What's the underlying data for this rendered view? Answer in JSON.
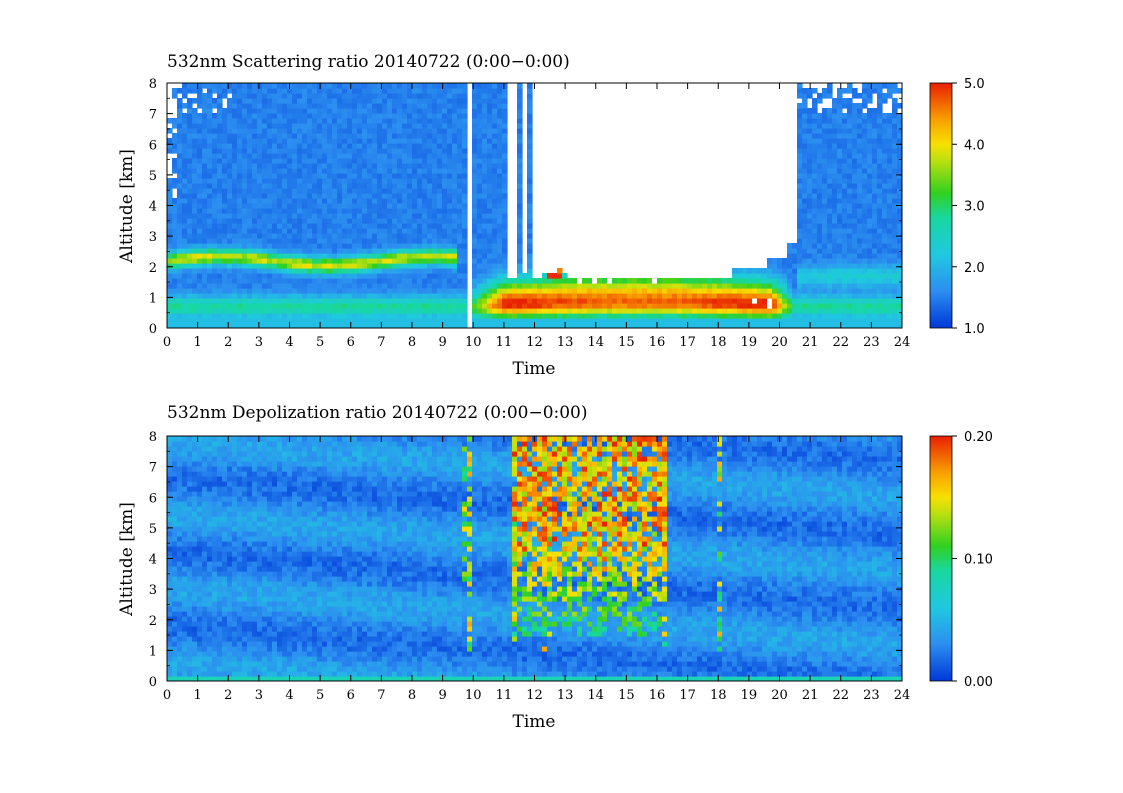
{
  "chart_data": [
    {
      "type": "heatmap",
      "title": "532nm Scattering ratio  20140722 (0:00−0:00)",
      "xlabel": "Time",
      "ylabel": "Altitude [km]",
      "xlim": [
        0,
        24
      ],
      "ylim": [
        0,
        8
      ],
      "x_ticks": [
        "0",
        "1",
        "2",
        "3",
        "4",
        "5",
        "6",
        "7",
        "8",
        "9",
        "10",
        "11",
        "12",
        "13",
        "14",
        "15",
        "16",
        "17",
        "18",
        "19",
        "20",
        "21",
        "22",
        "23",
        "24"
      ],
      "y_ticks": [
        "0",
        "1",
        "2",
        "3",
        "4",
        "5",
        "6",
        "7",
        "8"
      ],
      "colorbar": {
        "range": [
          1.0,
          5.0
        ],
        "ticks": [
          "1.0",
          "2.0",
          "3.0",
          "4.0",
          "5.0"
        ]
      },
      "features": {
        "aerosol_layer": {
          "altitude_km": 2.2,
          "time_range_h": [
            0,
            9.5
          ],
          "peak_value": 4.0
        },
        "boundary_layer": {
          "altitude_km": 0.7,
          "time_range_h": [
            0,
            24
          ],
          "value": 2.8
        },
        "cloud_base_region": {
          "altitude_km": [
            0.5,
            2.8
          ],
          "time_range_h": [
            9.8,
            20.5
          ],
          "peak_value": 5.0
        },
        "no_data_region": {
          "altitude_km": [
            1.6,
            8.0
          ],
          "time_range_h": [
            12.0,
            20.5
          ]
        },
        "background_value": 1.5
      }
    },
    {
      "type": "heatmap",
      "title": "532nm Depolization ratio  20140722 (0:00−0:00)",
      "xlabel": "Time",
      "ylabel": "Altitude [km]",
      "xlim": [
        0,
        24
      ],
      "ylim": [
        0,
        8
      ],
      "x_ticks": [
        "0",
        "1",
        "2",
        "3",
        "4",
        "5",
        "6",
        "7",
        "8",
        "9",
        "10",
        "11",
        "12",
        "13",
        "14",
        "15",
        "16",
        "17",
        "18",
        "19",
        "20",
        "21",
        "22",
        "23",
        "24"
      ],
      "y_ticks": [
        "0",
        "1",
        "2",
        "3",
        "4",
        "5",
        "6",
        "7",
        "8"
      ],
      "colorbar": {
        "range": [
          0.0,
          0.2
        ],
        "ticks": [
          "0.00",
          "0.10",
          "0.20"
        ]
      },
      "features": {
        "background_value": 0.03,
        "high_depolarization_region": {
          "altitude_km": [
            1.5,
            8.0
          ],
          "time_range_h": [
            11.3,
            16.3
          ],
          "peak_value": 0.2
        },
        "streaks_h": [
          9.8,
          11.4,
          12.4,
          16.2,
          18.1
        ]
      }
    }
  ]
}
